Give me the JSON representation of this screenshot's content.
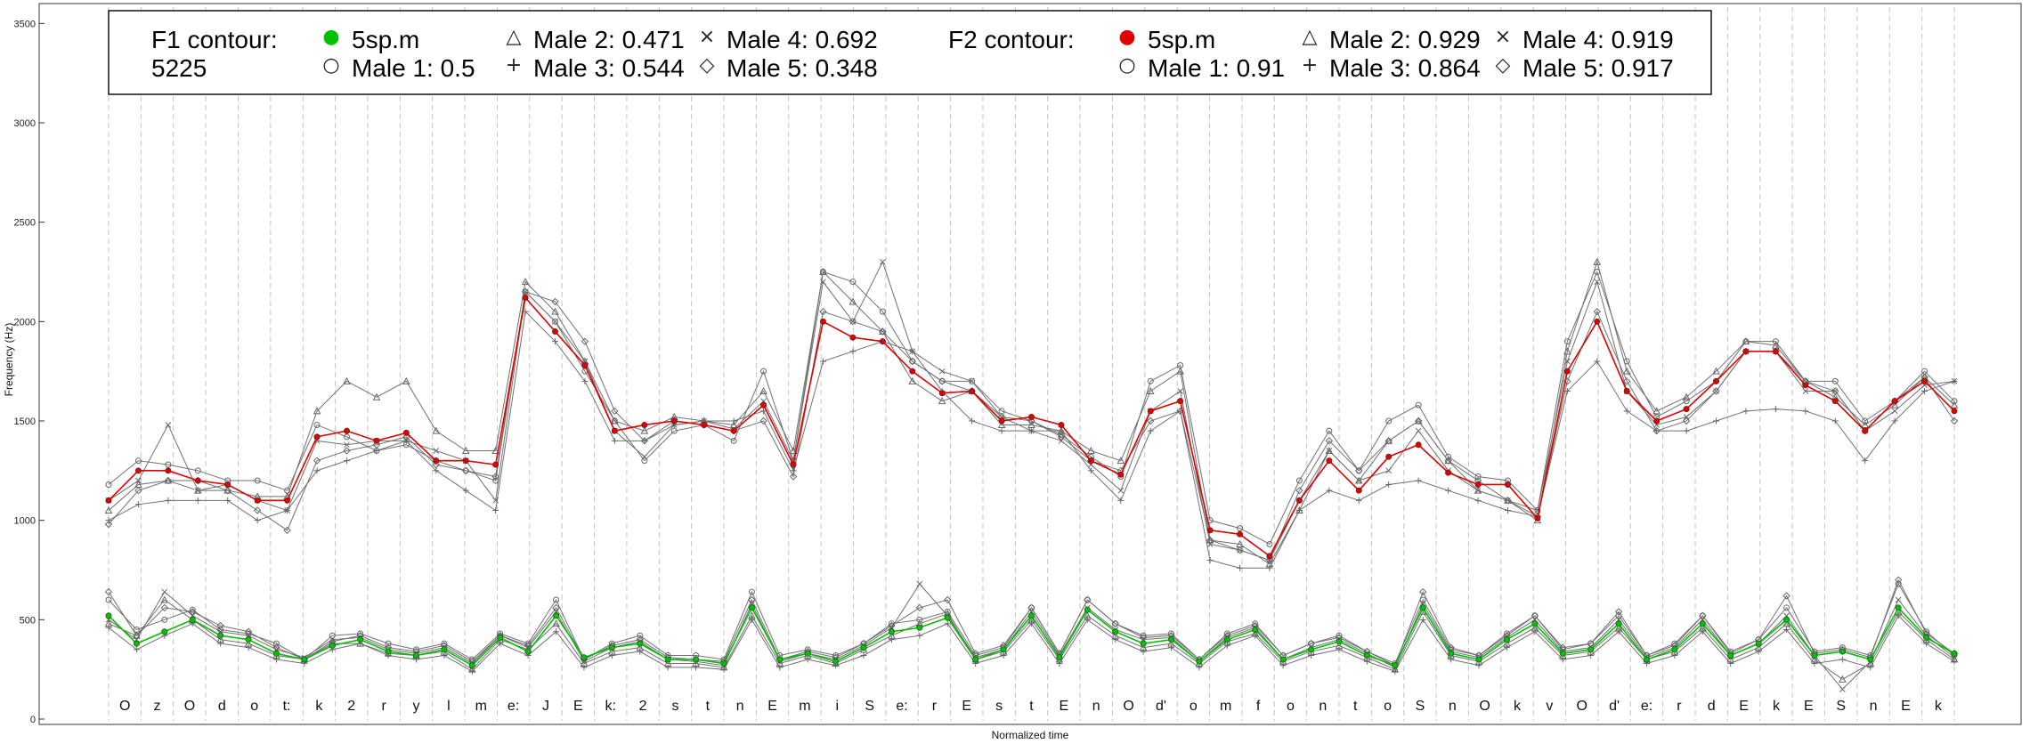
{
  "chart_data": {
    "type": "line",
    "xlabel": "Normalized time",
    "ylabel": "Frequency (Hz)",
    "ylim": [
      0,
      3600
    ],
    "yticks": [
      0,
      500,
      1000,
      1500,
      2000,
      2500,
      3000,
      3500
    ],
    "grid": "vertical dashed segment boundaries",
    "legend_position": "top-left",
    "phones": [
      "O",
      "z",
      "O",
      "d",
      "o",
      "t:",
      "k",
      "2",
      "r",
      "y",
      "l",
      "m",
      "e:",
      "J",
      "E",
      "k:",
      "2",
      "s",
      "t",
      "n",
      "E",
      "m",
      "i",
      "S",
      "e:",
      "r",
      "E",
      "s",
      "t",
      "E",
      "n",
      "O",
      "d'",
      "o",
      "m",
      "f",
      "o",
      "n",
      "t",
      "o",
      "S",
      "n",
      "O",
      "k",
      "v",
      "O",
      "d'",
      "e:",
      "r",
      "d",
      "E",
      "k",
      "E",
      "S",
      "n",
      "E",
      "k"
    ],
    "legend": {
      "f1_title": "F1 contour:",
      "f1_subtitle": "5225",
      "f2_title": "F2 contour:",
      "f1_entries": [
        {
          "symbol": "●",
          "label": "5sp.m",
          "color": "#00c000"
        },
        {
          "symbol": "○",
          "label": "Male 1: 0.5"
        },
        {
          "symbol": "△",
          "label": "Male 2: 0.471"
        },
        {
          "symbol": "+",
          "label": "Male 3: 0.544"
        },
        {
          "symbol": "×",
          "label": "Male 4: 0.692"
        },
        {
          "symbol": "◇",
          "label": "Male 5: 0.348"
        }
      ],
      "f2_entries": [
        {
          "symbol": "●",
          "label": "5sp.m",
          "color": "#e00000"
        },
        {
          "symbol": "○",
          "label": "Male 1: 0.91"
        },
        {
          "symbol": "△",
          "label": "Male 2: 0.929"
        },
        {
          "symbol": "+",
          "label": "Male 3: 0.864"
        },
        {
          "symbol": "×",
          "label": "Male 4: 0.919"
        },
        {
          "symbol": "◇",
          "label": "Male 5: 0.917"
        }
      ]
    },
    "series": [
      {
        "name": "5sp.m",
        "formant": "F2",
        "color": "#e00000",
        "y": [
          1100,
          1250,
          1250,
          1200,
          1180,
          1100,
          1100,
          1420,
          1450,
          1400,
          1440,
          1300,
          1300,
          1280,
          2120,
          1950,
          1780,
          1450,
          1480,
          1500,
          1480,
          1450,
          1580,
          1280,
          2000,
          1920,
          1900,
          1750,
          1640,
          1650,
          1500,
          1520,
          1480,
          1300,
          1230,
          1550,
          1600,
          950,
          930,
          820,
          1100,
          1300,
          1150,
          1320,
          1380,
          1240,
          1180,
          1180,
          1010,
          1750,
          2000,
          1650,
          1500,
          1560,
          1700,
          1850,
          1850,
          1680,
          1600,
          1450,
          1600,
          1700,
          1550
        ]
      },
      {
        "name": "Male 1",
        "formant": "F2",
        "color": "#707070",
        "marker": "circle",
        "y": [
          1180,
          1300,
          1280,
          1250,
          1200,
          1200,
          1150,
          1480,
          1420,
          1350,
          1380,
          1300,
          1250,
          1200,
          2150,
          2000,
          1750,
          1500,
          1300,
          1450,
          1480,
          1400,
          1750,
          1300,
          2250,
          2200,
          2050,
          1800,
          1700,
          1700,
          1550,
          1500,
          1430,
          1320,
          1220,
          1700,
          1780,
          1000,
          960,
          880,
          1200,
          1450,
          1250,
          1500,
          1580,
          1320,
          1220,
          1200,
          1050,
          1900,
          2250,
          1800,
          1520,
          1600,
          1700,
          1900,
          1900,
          1700,
          1700,
          1500,
          1600,
          1750,
          1600
        ]
      },
      {
        "name": "Male 2",
        "formant": "F2",
        "color": "#707070",
        "marker": "triangle",
        "y": [
          1050,
          1180,
          1200,
          1150,
          1150,
          1120,
          1120,
          1550,
          1700,
          1620,
          1700,
          1450,
          1350,
          1350,
          2200,
          2050,
          1800,
          1500,
          1450,
          1520,
          1500,
          1480,
          1650,
          1350,
          2250,
          2100,
          1950,
          1700,
          1600,
          1650,
          1480,
          1480,
          1450,
          1350,
          1300,
          1650,
          1750,
          900,
          880,
          780,
          1050,
          1350,
          1200,
          1400,
          1500,
          1300,
          1150,
          1100,
          1000,
          1850,
          2300,
          1750,
          1550,
          1620,
          1750,
          1900,
          1880,
          1700,
          1620,
          1480,
          1580,
          1720,
          1580
        ]
      },
      {
        "name": "Male 3",
        "formant": "F2",
        "color": "#707070",
        "marker": "plus",
        "y": [
          1000,
          1080,
          1100,
          1100,
          1100,
          1000,
          1050,
          1250,
          1300,
          1350,
          1400,
          1250,
          1150,
          1050,
          2050,
          1900,
          1700,
          1400,
          1400,
          1480,
          1500,
          1500,
          1550,
          1250,
          1800,
          1850,
          1900,
          1850,
          1650,
          1500,
          1450,
          1450,
          1450,
          1250,
          1100,
          1450,
          1550,
          800,
          760,
          760,
          1050,
          1150,
          1100,
          1180,
          1200,
          1150,
          1100,
          1050,
          1020,
          1650,
          1800,
          1550,
          1450,
          1450,
          1500,
          1550,
          1560,
          1550,
          1500,
          1300,
          1500,
          1650,
          1700
        ]
      },
      {
        "name": "Male 4",
        "formant": "F2",
        "color": "#707070",
        "marker": "cross",
        "y": [
          1100,
          1200,
          1480,
          1150,
          1180,
          1100,
          1050,
          1400,
          1380,
          1400,
          1400,
          1350,
          1300,
          1100,
          2150,
          2000,
          1800,
          1450,
          1320,
          1480,
          1500,
          1460,
          1600,
          1300,
          2200,
          2000,
          2300,
          1850,
          1750,
          1700,
          1520,
          1450,
          1400,
          1280,
          1150,
          1550,
          1650,
          880,
          850,
          800,
          1100,
          1350,
          1200,
          1250,
          1450,
          1250,
          1150,
          1100,
          1050,
          1800,
          2200,
          1650,
          1480,
          1520,
          1650,
          1850,
          1850,
          1650,
          1650,
          1450,
          1550,
          1680,
          1700
        ]
      },
      {
        "name": "Male 5",
        "formant": "F2",
        "color": "#707070",
        "marker": "diamond",
        "y": [
          980,
          1150,
          1200,
          1200,
          1150,
          1050,
          950,
          1300,
          1350,
          1380,
          1420,
          1280,
          1250,
          1220,
          2150,
          2100,
          1900,
          1550,
          1400,
          1500,
          1480,
          1450,
          1500,
          1220,
          2050,
          2000,
          1950,
          1800,
          1700,
          1650,
          1520,
          1500,
          1420,
          1300,
          1250,
          1500,
          1550,
          900,
          850,
          800,
          1150,
          1400,
          1250,
          1400,
          1500,
          1300,
          1200,
          1100,
          1020,
          1700,
          2050,
          1700,
          1450,
          1500,
          1650,
          1850,
          1850,
          1700,
          1650,
          1450,
          1600,
          1720,
          1500
        ]
      },
      {
        "name": "5sp.m",
        "formant": "F1",
        "color": "#00c000",
        "y": [
          520,
          380,
          440,
          500,
          420,
          400,
          330,
          300,
          370,
          400,
          340,
          320,
          350,
          270,
          410,
          340,
          520,
          310,
          360,
          380,
          300,
          300,
          280,
          560,
          300,
          330,
          290,
          360,
          440,
          460,
          510,
          300,
          350,
          520,
          310,
          550,
          440,
          380,
          400,
          290,
          400,
          450,
          300,
          350,
          390,
          320,
          270,
          560,
          330,
          300,
          400,
          480,
          330,
          350,
          480,
          300,
          350,
          480,
          320,
          380,
          500,
          320,
          340,
          300,
          560,
          410,
          330
        ]
      },
      {
        "name": "Male 1",
        "formant": "F1",
        "color": "#707070",
        "marker": "circle",
        "y": [
          600,
          450,
          500,
          550,
          450,
          430,
          380,
          300,
          420,
          430,
          380,
          350,
          380,
          300,
          430,
          380,
          600,
          300,
          380,
          420,
          320,
          320,
          300,
          640,
          320,
          350,
          320,
          380,
          480,
          500,
          540,
          320,
          360,
          560,
          330,
          600,
          480,
          420,
          430,
          300,
          430,
          480,
          320,
          380,
          420,
          340,
          280,
          600,
          350,
          320,
          430,
          520,
          350,
          380,
          520,
          320,
          380,
          520,
          340,
          400,
          560,
          340,
          360,
          320,
          680,
          440,
          320
        ]
      },
      {
        "name": "Male 2",
        "formant": "F1",
        "color": "#707070",
        "marker": "triangle",
        "y": [
          480,
          420,
          600,
          500,
          400,
          380,
          320,
          300,
          380,
          380,
          330,
          320,
          340,
          250,
          400,
          350,
          480,
          280,
          340,
          360,
          280,
          280,
          260,
          520,
          280,
          320,
          280,
          350,
          420,
          480,
          530,
          300,
          340,
          500,
          300,
          520,
          420,
          360,
          380,
          280,
          390,
          430,
          290,
          340,
          370,
          310,
          250,
          540,
          320,
          290,
          380,
          460,
          320,
          340,
          460,
          300,
          340,
          460,
          300,
          360,
          480,
          300,
          200,
          280,
          540,
          400,
          300
        ]
      },
      {
        "name": "Male 3",
        "formant": "F1",
        "color": "#707070",
        "marker": "plus",
        "y": [
          460,
          350,
          420,
          480,
          380,
          360,
          300,
          280,
          350,
          380,
          320,
          300,
          320,
          240,
          380,
          320,
          440,
          260,
          320,
          340,
          260,
          260,
          250,
          500,
          260,
          300,
          270,
          320,
          400,
          420,
          480,
          280,
          320,
          480,
          280,
          500,
          400,
          340,
          360,
          260,
          370,
          420,
          270,
          320,
          350,
          290,
          240,
          500,
          300,
          270,
          360,
          440,
          300,
          320,
          440,
          280,
          320,
          440,
          280,
          340,
          450,
          280,
          300,
          260,
          520,
          380,
          290
        ]
      },
      {
        "name": "Male 4",
        "formant": "F1",
        "color": "#707070",
        "marker": "cross",
        "y": [
          500,
          400,
          640,
          520,
          440,
          420,
          350,
          310,
          400,
          410,
          350,
          330,
          360,
          280,
          420,
          360,
          540,
          290,
          360,
          390,
          300,
          290,
          270,
          580,
          290,
          330,
          300,
          370,
          460,
          680,
          520,
          310,
          350,
          540,
          320,
          560,
          450,
          400,
          410,
          290,
          410,
          460,
          300,
          360,
          400,
          330,
          260,
          580,
          340,
          310,
          410,
          500,
          340,
          360,
          500,
          310,
          360,
          500,
          320,
          380,
          520,
          320,
          150,
          290,
          600,
          420,
          310
        ]
      },
      {
        "name": "Male 5",
        "formant": "F1",
        "color": "#707070",
        "marker": "diamond",
        "y": [
          640,
          420,
          560,
          540,
          470,
          440,
          360,
          300,
          390,
          420,
          360,
          340,
          370,
          290,
          420,
          370,
          560,
          300,
          370,
          400,
          310,
          300,
          290,
          600,
          300,
          340,
          310,
          380,
          470,
          560,
          600,
          330,
          370,
          560,
          330,
          600,
          480,
          410,
          420,
          300,
          420,
          470,
          320,
          380,
          410,
          340,
          270,
          640,
          360,
          320,
          420,
          520,
          360,
          380,
          540,
          320,
          370,
          520,
          330,
          400,
          620,
          330,
          350,
          310,
          700,
          430,
          330
        ]
      }
    ]
  }
}
